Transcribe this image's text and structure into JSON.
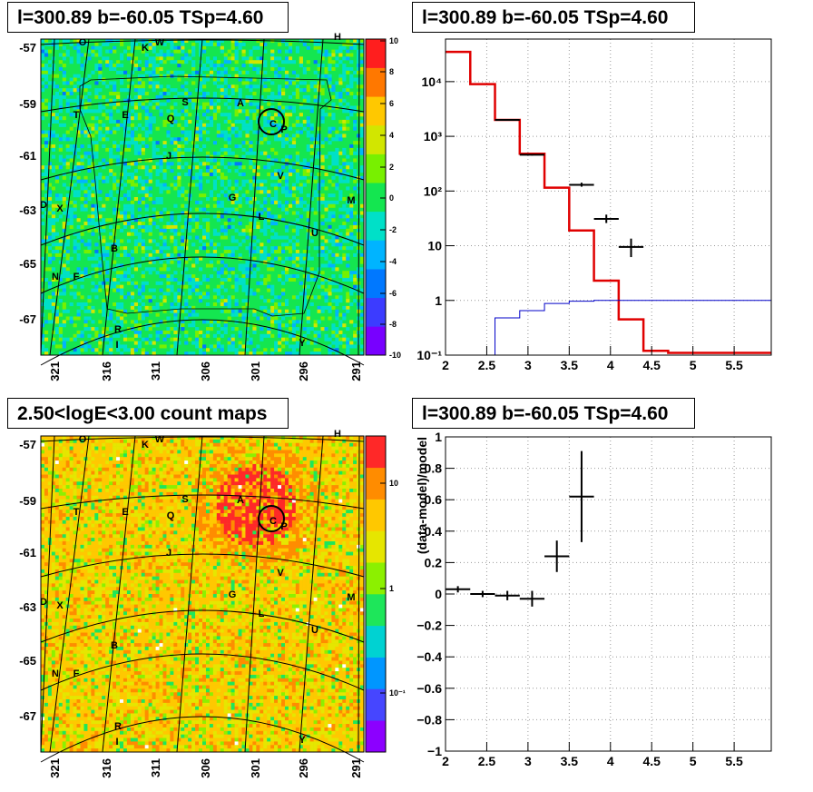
{
  "panels": {
    "map_tsmap": {
      "title": "l=300.89 b=-60.05 TSp=4.60",
      "y_ticks": [
        "-57",
        "-59",
        "-61",
        "-63",
        "-65",
        "-67"
      ],
      "x_ticks": [
        "321",
        "316",
        "311",
        "306",
        "301",
        "296",
        "291"
      ],
      "colorbar_ticks": [
        "10",
        "8",
        "6",
        "4",
        "2",
        "0",
        "-2",
        "-4",
        "-6",
        "-8",
        "-10"
      ],
      "colors": [
        "#7800ff",
        "#3c3cff",
        "#0078ff",
        "#00b4ff",
        "#00e0c8",
        "#14e650",
        "#78f000",
        "#d2e600",
        "#ffc800",
        "#ff7800",
        "#ff1e1e"
      ]
    },
    "spectrum": {
      "title": "l=300.89 b=-60.05 TSp=4.60"
    },
    "count_map": {
      "title": "2.50<logE<3.00 count maps",
      "y_ticks": [
        "-57",
        "-59",
        "-61",
        "-63",
        "-65",
        "-67"
      ],
      "x_ticks": [
        "321",
        "316",
        "311",
        "306",
        "301",
        "296",
        "291"
      ],
      "colorbar_ticks": [
        "10",
        "1",
        "10⁻¹"
      ],
      "colors": [
        "#8c00ff",
        "#4646ff",
        "#0096ff",
        "#00d2d2",
        "#1ee65a",
        "#8cf000",
        "#e6e600",
        "#ffc800",
        "#ff8c00",
        "#ff2828"
      ]
    },
    "residual": {
      "title": "l=300.89 b=-60.05 TSp=4.60"
    }
  },
  "sources": [
    {
      "label": "O"
    },
    {
      "label": "K"
    },
    {
      "label": "W"
    },
    {
      "label": "H"
    },
    {
      "label": "S"
    },
    {
      "label": "A"
    },
    {
      "label": "T"
    },
    {
      "label": "E"
    },
    {
      "label": "Q"
    },
    {
      "label": "C"
    },
    {
      "label": "P"
    },
    {
      "label": "J"
    },
    {
      "label": "V"
    },
    {
      "label": "G"
    },
    {
      "label": "M"
    },
    {
      "label": "D"
    },
    {
      "label": "X"
    },
    {
      "label": "L"
    },
    {
      "label": "U"
    },
    {
      "label": "B"
    },
    {
      "label": "N"
    },
    {
      "label": "F"
    },
    {
      "label": "R"
    },
    {
      "label": "I"
    },
    {
      "label": "Y"
    }
  ],
  "chart_data": [
    {
      "type": "heatmap",
      "panel": "map_tsmap",
      "xlabel": "",
      "ylabel": "",
      "colorbar_range": [
        -10,
        10
      ]
    },
    {
      "type": "line",
      "panel": "spectrum",
      "log_y": true,
      "xlim": [
        2,
        5.95
      ],
      "ylim": [
        0.1,
        60000
      ],
      "x_ticks": [
        "2",
        "2.5",
        "3",
        "3.5",
        "4",
        "4.5",
        "5",
        "5.5"
      ],
      "y_ticks": [
        "10⁻¹",
        "1",
        "10",
        "10²",
        "10³",
        "10⁴"
      ],
      "series": [
        {
          "color": "#e00000",
          "edges": [
            2.0,
            2.3,
            2.6,
            2.9,
            3.2,
            3.5,
            3.8,
            4.1,
            4.4,
            4.7,
            5.95
          ],
          "values": [
            35000,
            9000,
            2000,
            480,
            115,
            19,
            2.3,
            0.45,
            0.12,
            0.11
          ]
        },
        {
          "color": "#0000c8",
          "edges": [
            2.3,
            2.6,
            2.9,
            3.2,
            3.5,
            3.8,
            4.1,
            4.4,
            4.7,
            5.95
          ],
          "values": [
            0.1,
            0.48,
            0.65,
            0.88,
            0.97,
            1.0,
            1.0,
            1.0,
            1.0
          ]
        },
        {
          "color": "#000000",
          "points": [
            {
              "x": 2.75,
              "y": 2000,
              "xerr": 0.15,
              "ylo": 1950,
              "yhi": 2050
            },
            {
              "x": 3.05,
              "y": 460,
              "xerr": 0.15,
              "ylo": 445,
              "yhi": 475
            },
            {
              "x": 3.65,
              "y": 130,
              "xerr": 0.15,
              "ylo": 120,
              "yhi": 142
            },
            {
              "x": 3.95,
              "y": 31,
              "xerr": 0.15,
              "ylo": 26,
              "yhi": 37
            },
            {
              "x": 4.25,
              "y": 9.5,
              "xerr": 0.15,
              "ylo": 6.2,
              "yhi": 13.5
            }
          ]
        }
      ]
    },
    {
      "type": "heatmap",
      "panel": "count_map",
      "log_color": true
    },
    {
      "type": "scatter",
      "panel": "residual",
      "ylabel": "(data-model)/model",
      "xlim": [
        2,
        5.95
      ],
      "ylim": [
        -1,
        1
      ],
      "x_ticks": [
        "2",
        "2.5",
        "3",
        "3.5",
        "4",
        "4.5",
        "5",
        "5.5"
      ],
      "y_ticks": [
        "−1",
        "−0.8",
        "−0.6",
        "−0.4",
        "−0.2",
        "0",
        "0.2",
        "0.4",
        "0.6",
        "0.8",
        "1"
      ],
      "points": [
        {
          "x": 2.15,
          "y": 0.03,
          "xerr": 0.15,
          "yerr": 0.02
        },
        {
          "x": 2.45,
          "y": 0.0,
          "xerr": 0.15,
          "yerr": 0.02
        },
        {
          "x": 2.75,
          "y": -0.01,
          "xerr": 0.15,
          "yerr": 0.03
        },
        {
          "x": 3.05,
          "y": -0.03,
          "xerr": 0.15,
          "yerr": 0.05
        },
        {
          "x": 3.35,
          "y": 0.24,
          "xerr": 0.15,
          "yerr": 0.1
        },
        {
          "x": 3.65,
          "y": 0.62,
          "xerr": 0.15,
          "yerr": 0.29
        }
      ]
    }
  ]
}
